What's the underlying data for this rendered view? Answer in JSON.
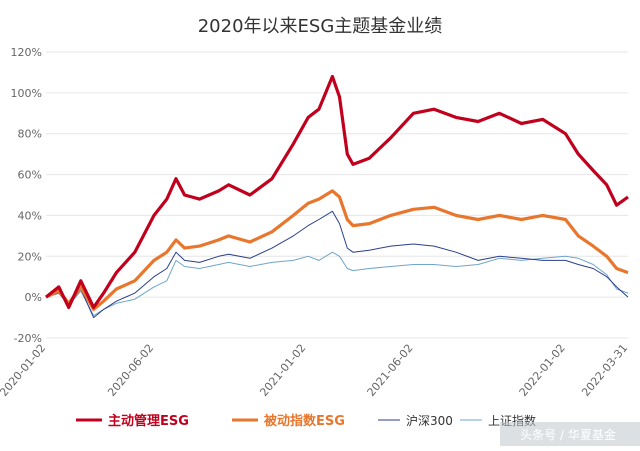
{
  "chart_data": {
    "type": "line",
    "title": "2020年以来ESG主题基金业绩",
    "ylim": [
      -20,
      120
    ],
    "yticks": [
      "-20%",
      "0%",
      "20%",
      "40%",
      "60%",
      "80%",
      "100%",
      "120%"
    ],
    "yticks_values": [
      -20,
      0,
      20,
      40,
      60,
      80,
      100,
      120
    ],
    "xlim": [
      "2020-01-02",
      "2022-03-31"
    ],
    "x_tick_labels": [
      "2020-01-02",
      "2020-06-02",
      "2021-01-02",
      "2021-06-02",
      "2022-01-02",
      "2022-03-31"
    ],
    "grid": "horizontal",
    "legend_position": "bottom",
    "x": [
      "2020-01-02",
      "2020-01-20",
      "2020-02-03",
      "2020-02-20",
      "2020-03-09",
      "2020-03-23",
      "2020-04-10",
      "2020-05-06",
      "2020-06-02",
      "2020-06-20",
      "2020-07-03",
      "2020-07-15",
      "2020-08-05",
      "2020-09-01",
      "2020-09-15",
      "2020-10-15",
      "2020-11-15",
      "2020-12-15",
      "2021-01-05",
      "2021-01-20",
      "2021-02-08",
      "2021-02-18",
      "2021-03-01",
      "2021-03-09",
      "2021-04-01",
      "2021-05-01",
      "2021-06-02",
      "2021-07-01",
      "2021-08-01",
      "2021-09-01",
      "2021-10-01",
      "2021-11-01",
      "2021-12-01",
      "2022-01-02",
      "2022-01-20",
      "2022-02-10",
      "2022-03-01",
      "2022-03-15",
      "2022-03-31"
    ],
    "series": [
      {
        "name": "主动管理ESG",
        "color": "#c0001c",
        "values": [
          0,
          5,
          -5,
          8,
          -5,
          2,
          12,
          22,
          40,
          48,
          58,
          50,
          48,
          52,
          55,
          50,
          58,
          75,
          88,
          92,
          108,
          98,
          70,
          65,
          68,
          78,
          90,
          92,
          88,
          86,
          90,
          85,
          87,
          80,
          70,
          62,
          55,
          45,
          49
        ]
      },
      {
        "name": "被动指数ESG",
        "color": "#e8762d",
        "values": [
          0,
          3,
          -3,
          5,
          -6,
          -2,
          4,
          8,
          18,
          22,
          28,
          24,
          25,
          28,
          30,
          27,
          32,
          40,
          46,
          48,
          52,
          49,
          38,
          35,
          36,
          40,
          43,
          44,
          40,
          38,
          40,
          38,
          40,
          38,
          30,
          25,
          20,
          14,
          12
        ]
      },
      {
        "name": "沪深300",
        "color": "#2b3f8c",
        "values": [
          0,
          2,
          -4,
          4,
          -10,
          -6,
          -2,
          2,
          10,
          14,
          22,
          18,
          17,
          20,
          21,
          19,
          24,
          30,
          35,
          38,
          42,
          36,
          24,
          22,
          23,
          25,
          26,
          25,
          22,
          18,
          20,
          19,
          18,
          18,
          16,
          14,
          10,
          5,
          0
        ]
      },
      {
        "name": "上证指数",
        "color": "#6fa6c9",
        "values": [
          0,
          2,
          -4,
          3,
          -9,
          -6,
          -3,
          -1,
          5,
          8,
          18,
          15,
          14,
          16,
          17,
          15,
          17,
          18,
          20,
          18,
          22,
          20,
          14,
          13,
          14,
          15,
          16,
          16,
          15,
          16,
          19,
          18,
          19,
          20,
          19,
          16,
          11,
          4,
          2
        ]
      }
    ]
  },
  "watermark": "头条号 / 华夏基金"
}
